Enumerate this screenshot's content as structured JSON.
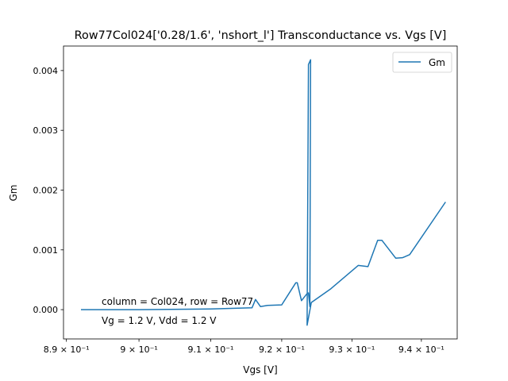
{
  "chart_data": {
    "type": "line",
    "title": "Row77Col024['0.28/1.6', 'nshort_l'] Transconductance vs. Vgs [V]",
    "xlabel": "Vgs [V]",
    "ylabel": "Gm",
    "xscale": "log",
    "xlim": [
      0.8896,
      0.9452
    ],
    "ylim": [
      -0.00049,
      0.00441
    ],
    "grid": false,
    "legend": {
      "placement": "top-right",
      "entries": [
        "Gm"
      ]
    },
    "x_tick_labels": [
      {
        "value": 0.89,
        "label": "8.9 × 10⁻¹"
      },
      {
        "value": 0.9,
        "label": "9 × 10⁻¹"
      },
      {
        "value": 0.91,
        "label": "9.1 × 10⁻¹"
      },
      {
        "value": 0.92,
        "label": "9.2 × 10⁻¹"
      },
      {
        "value": 0.93,
        "label": "9.3 × 10⁻¹"
      },
      {
        "value": 0.94,
        "label": "9.4 × 10⁻¹"
      }
    ],
    "y_tick_labels": [
      {
        "value": 0.0,
        "label": "0.000"
      },
      {
        "value": 0.001,
        "label": "0.001"
      },
      {
        "value": 0.002,
        "label": "0.002"
      },
      {
        "value": 0.003,
        "label": "0.003"
      },
      {
        "value": 0.004,
        "label": "0.004"
      }
    ],
    "annotations": [
      "column = Col024, row = Row77",
      "Vg = 1.2 V, Vdd = 1.2 V"
    ],
    "color": "#1f77b4",
    "series": [
      {
        "name": "Gm",
        "x": [
          0.9435,
          0.9383,
          0.9373,
          0.9363,
          0.9343,
          0.9337,
          0.9323,
          0.9309,
          0.927,
          0.9242,
          0.9236,
          0.9238,
          0.9241,
          0.924,
          0.9238,
          0.9236,
          0.9228,
          0.9222,
          0.922,
          0.92,
          0.918,
          0.917,
          0.9163,
          0.9158,
          0.91,
          0.9,
          0.892
        ],
        "y": [
          0.0018,
          0.00092,
          0.00087,
          0.00086,
          0.00116,
          0.00116,
          0.00072,
          0.00074,
          0.00035,
          0.00012,
          -0.00026,
          0.0041,
          0.00418,
          5e-05,
          0.00028,
          0.00027,
          0.00015,
          0.00045,
          0.00045,
          8e-05,
          7e-05,
          5e-05,
          0.00017,
          3e-05,
          1e-05,
          0.0,
          0.0
        ]
      }
    ]
  }
}
